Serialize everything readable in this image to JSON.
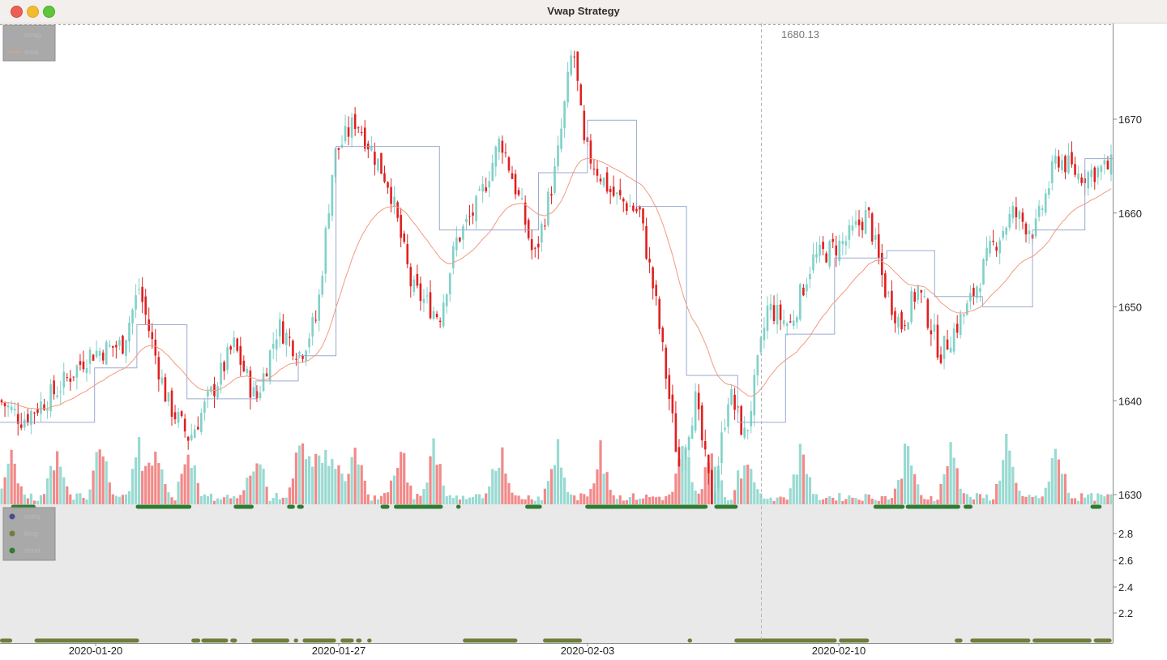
{
  "window": {
    "title": "Vwap Strategy"
  },
  "price_legend": {
    "items": [
      {
        "label": "vwap",
        "color": "#9aaad0"
      },
      {
        "label": "ema",
        "color": "#f29a7f"
      }
    ]
  },
  "signal_legend": {
    "items": [
      {
        "label": "entry",
        "color": "#4b4b8f"
      },
      {
        "label": "long",
        "color": "#6d7f3a"
      },
      {
        "label": "short",
        "color": "#2e7d32"
      }
    ]
  },
  "crosshair": {
    "value_label": "1680.13"
  },
  "colors": {
    "up": "#7fd1c7",
    "down": "#ef6b6b",
    "down_wick": "#e02020",
    "vwap": "#9aaad0",
    "ema": "#f29a7f",
    "long": "#6d7f3a",
    "short": "#2e7d32",
    "signal_pane_bg": "#e9e9e9"
  },
  "chart_data": [
    {
      "type": "candlestick",
      "title": "",
      "x_ticks": [
        "2020-01-20",
        "2020-01-27",
        "2020-02-03",
        "2020-02-10"
      ],
      "y_ticks": [
        "1630",
        "1640",
        "1650",
        "1660",
        "1670"
      ],
      "ylim": [
        1629,
        1680.13
      ],
      "close_anchors": [
        {
          "t": 0.0,
          "y": 1640
        },
        {
          "t": 0.02,
          "y": 1638
        },
        {
          "t": 0.05,
          "y": 1641
        },
        {
          "t": 0.08,
          "y": 1645
        },
        {
          "t": 0.11,
          "y": 1646
        },
        {
          "t": 0.125,
          "y": 1652
        },
        {
          "t": 0.135,
          "y": 1647
        },
        {
          "t": 0.15,
          "y": 1640
        },
        {
          "t": 0.17,
          "y": 1636
        },
        {
          "t": 0.195,
          "y": 1642
        },
        {
          "t": 0.21,
          "y": 1646
        },
        {
          "t": 0.23,
          "y": 1640
        },
        {
          "t": 0.25,
          "y": 1648
        },
        {
          "t": 0.27,
          "y": 1645
        },
        {
          "t": 0.285,
          "y": 1649
        },
        {
          "t": 0.3,
          "y": 1666
        },
        {
          "t": 0.32,
          "y": 1670
        },
        {
          "t": 0.35,
          "y": 1663
        },
        {
          "t": 0.37,
          "y": 1652
        },
        {
          "t": 0.395,
          "y": 1649
        },
        {
          "t": 0.41,
          "y": 1657
        },
        {
          "t": 0.43,
          "y": 1661
        },
        {
          "t": 0.45,
          "y": 1668
        },
        {
          "t": 0.47,
          "y": 1660
        },
        {
          "t": 0.48,
          "y": 1655
        },
        {
          "t": 0.5,
          "y": 1665
        },
        {
          "t": 0.515,
          "y": 1678
        },
        {
          "t": 0.525,
          "y": 1667
        },
        {
          "t": 0.55,
          "y": 1662
        },
        {
          "t": 0.575,
          "y": 1660
        },
        {
          "t": 0.59,
          "y": 1650
        },
        {
          "t": 0.61,
          "y": 1633
        },
        {
          "t": 0.625,
          "y": 1640
        },
        {
          "t": 0.64,
          "y": 1629
        },
        {
          "t": 0.655,
          "y": 1641
        },
        {
          "t": 0.67,
          "y": 1636
        },
        {
          "t": 0.69,
          "y": 1650
        },
        {
          "t": 0.71,
          "y": 1648
        },
        {
          "t": 0.73,
          "y": 1655
        },
        {
          "t": 0.76,
          "y": 1657
        },
        {
          "t": 0.78,
          "y": 1660
        },
        {
          "t": 0.795,
          "y": 1652
        },
        {
          "t": 0.81,
          "y": 1648
        },
        {
          "t": 0.825,
          "y": 1652
        },
        {
          "t": 0.845,
          "y": 1645
        },
        {
          "t": 0.87,
          "y": 1650
        },
        {
          "t": 0.89,
          "y": 1656
        },
        {
          "t": 0.91,
          "y": 1660
        },
        {
          "t": 0.93,
          "y": 1658
        },
        {
          "t": 0.95,
          "y": 1666
        },
        {
          "t": 0.97,
          "y": 1664
        },
        {
          "t": 1.0,
          "y": 1665
        }
      ],
      "vwap_segments": [
        {
          "t0": 0.0,
          "t1": 0.085,
          "y": 1637.7
        },
        {
          "t0": 0.085,
          "t1": 0.123,
          "y": 1643.5
        },
        {
          "t0": 0.123,
          "t1": 0.168,
          "y": 1648.1
        },
        {
          "t0": 0.168,
          "t1": 0.23,
          "y": 1640.2
        },
        {
          "t0": 0.23,
          "t1": 0.268,
          "y": 1642.1
        },
        {
          "t0": 0.268,
          "t1": 0.302,
          "y": 1644.8
        },
        {
          "t0": 0.302,
          "t1": 0.395,
          "y": 1667.1
        },
        {
          "t0": 0.395,
          "t1": 0.484,
          "y": 1658.2
        },
        {
          "t0": 0.484,
          "t1": 0.528,
          "y": 1664.3
        },
        {
          "t0": 0.528,
          "t1": 0.572,
          "y": 1669.9
        },
        {
          "t0": 0.572,
          "t1": 0.617,
          "y": 1660.7
        },
        {
          "t0": 0.617,
          "t1": 0.663,
          "y": 1642.7
        },
        {
          "t0": 0.663,
          "t1": 0.706,
          "y": 1637.7
        },
        {
          "t0": 0.706,
          "t1": 0.75,
          "y": 1647.1
        },
        {
          "t0": 0.75,
          "t1": 0.797,
          "y": 1655.2
        },
        {
          "t0": 0.797,
          "t1": 0.84,
          "y": 1656.0
        },
        {
          "t0": 0.84,
          "t1": 0.883,
          "y": 1651.1
        },
        {
          "t0": 0.883,
          "t1": 0.928,
          "y": 1650.0
        },
        {
          "t0": 0.928,
          "t1": 0.975,
          "y": 1658.2
        },
        {
          "t0": 0.975,
          "t1": 1.0,
          "y": 1665.8
        }
      ],
      "volume_spikes": [
        0.01,
        0.05,
        0.09,
        0.125,
        0.14,
        0.17,
        0.23,
        0.27,
        0.285,
        0.3,
        0.32,
        0.36,
        0.39,
        0.45,
        0.5,
        0.54,
        0.615,
        0.64,
        0.67,
        0.72,
        0.815,
        0.855,
        0.905,
        0.95
      ],
      "signals_short": [
        {
          "t0": 0.01,
          "t1": 0.032
        },
        {
          "t0": 0.122,
          "t1": 0.172
        },
        {
          "t0": 0.21,
          "t1": 0.228
        },
        {
          "t0": 0.258,
          "t1": 0.265
        },
        {
          "t0": 0.267,
          "t1": 0.273
        },
        {
          "t0": 0.342,
          "t1": 0.35
        },
        {
          "t0": 0.354,
          "t1": 0.398
        },
        {
          "t0": 0.41,
          "t1": 0.414
        },
        {
          "t0": 0.472,
          "t1": 0.487
        },
        {
          "t0": 0.526,
          "t1": 0.636
        },
        {
          "t0": 0.642,
          "t1": 0.663
        },
        {
          "t0": 0.785,
          "t1": 0.813
        },
        {
          "t0": 0.814,
          "t1": 0.863
        },
        {
          "t0": 0.866,
          "t1": 0.874
        },
        {
          "t0": 0.98,
          "t1": 0.99
        }
      ],
      "signals_long": [
        {
          "t0": 0.0,
          "t1": 0.011
        },
        {
          "t0": 0.031,
          "t1": 0.125
        },
        {
          "t0": 0.172,
          "t1": 0.18
        },
        {
          "t0": 0.181,
          "t1": 0.205
        },
        {
          "t0": 0.207,
          "t1": 0.213
        },
        {
          "t0": 0.226,
          "t1": 0.26
        },
        {
          "t0": 0.264,
          "t1": 0.268
        },
        {
          "t0": 0.272,
          "t1": 0.302
        },
        {
          "t0": 0.306,
          "t1": 0.318
        },
        {
          "t0": 0.32,
          "t1": 0.325
        },
        {
          "t0": 0.33,
          "t1": 0.334
        },
        {
          "t0": 0.416,
          "t1": 0.465
        },
        {
          "t0": 0.488,
          "t1": 0.523
        },
        {
          "t0": 0.618,
          "t1": 0.622
        },
        {
          "t0": 0.66,
          "t1": 0.752
        },
        {
          "t0": 0.754,
          "t1": 0.781
        },
        {
          "t0": 0.858,
          "t1": 0.865
        },
        {
          "t0": 0.872,
          "t1": 0.926
        },
        {
          "t0": 0.928,
          "t1": 0.981
        },
        {
          "t0": 0.983,
          "t1": 0.999
        }
      ]
    },
    {
      "type": "scatter",
      "title": "",
      "y_ticks": [
        "2.8",
        "2.6",
        "2.4",
        "2.2"
      ],
      "series": [
        {
          "name": "entry"
        },
        {
          "name": "long"
        },
        {
          "name": "short"
        }
      ]
    }
  ]
}
